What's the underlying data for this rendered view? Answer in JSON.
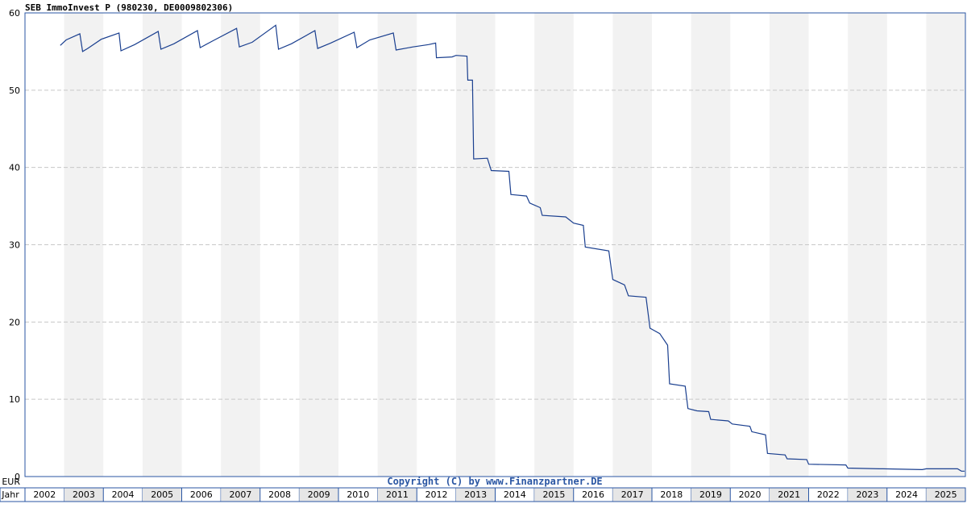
{
  "chart_data": {
    "type": "line",
    "title": "SEB ImmoInvest P (980230, DE0009802306)",
    "ylabel": "EUR",
    "xlabel": "Jahr",
    "ylim": [
      0,
      60
    ],
    "yticks": [
      0,
      10,
      20,
      30,
      40,
      50,
      60
    ],
    "xlim": [
      2001.5,
      2025.5
    ],
    "x_tick_labels": [
      "2002",
      "2003",
      "2004",
      "2005",
      "2006",
      "2007",
      "2008",
      "2009",
      "2010",
      "2011",
      "2012",
      "2013",
      "2014",
      "2015",
      "2016",
      "2017",
      "2018",
      "2019",
      "2020",
      "2021",
      "2022",
      "2023",
      "2024",
      "2025"
    ],
    "grid": true,
    "alternating_year_bands": true,
    "copyright": "Copyright (C) by www.Finanzpartner.DE",
    "series": [
      {
        "color": "#1a3f8f",
        "points": [
          [
            2002.4,
            55.8
          ],
          [
            2002.55,
            56.5
          ],
          [
            2002.9,
            57.3
          ],
          [
            2002.97,
            55.0
          ],
          [
            2003.1,
            55.4
          ],
          [
            2003.45,
            56.6
          ],
          [
            2003.9,
            57.4
          ],
          [
            2003.95,
            55.1
          ],
          [
            2004.3,
            55.9
          ],
          [
            2004.9,
            57.6
          ],
          [
            2004.97,
            55.3
          ],
          [
            2005.3,
            56.0
          ],
          [
            2005.9,
            57.7
          ],
          [
            2005.97,
            55.5
          ],
          [
            2006.3,
            56.4
          ],
          [
            2006.9,
            58.0
          ],
          [
            2006.97,
            55.6
          ],
          [
            2007.3,
            56.2
          ],
          [
            2007.9,
            58.4
          ],
          [
            2007.97,
            55.3
          ],
          [
            2008.3,
            56.0
          ],
          [
            2008.9,
            57.7
          ],
          [
            2008.97,
            55.4
          ],
          [
            2009.3,
            56.1
          ],
          [
            2009.9,
            57.5
          ],
          [
            2009.97,
            55.5
          ],
          [
            2010.3,
            56.5
          ],
          [
            2010.9,
            57.4
          ],
          [
            2010.97,
            55.2
          ],
          [
            2011.4,
            55.6
          ],
          [
            2011.8,
            55.9
          ],
          [
            2011.98,
            56.1
          ],
          [
            2012.0,
            54.2
          ],
          [
            2012.4,
            54.3
          ],
          [
            2012.5,
            54.5
          ],
          [
            2012.78,
            54.4
          ],
          [
            2012.8,
            51.3
          ],
          [
            2012.92,
            51.3
          ],
          [
            2012.95,
            41.1
          ],
          [
            2013.3,
            41.2
          ],
          [
            2013.4,
            39.6
          ],
          [
            2013.85,
            39.5
          ],
          [
            2013.9,
            36.5
          ],
          [
            2014.3,
            36.3
          ],
          [
            2014.38,
            35.4
          ],
          [
            2014.65,
            34.8
          ],
          [
            2014.7,
            33.8
          ],
          [
            2015.3,
            33.6
          ],
          [
            2015.5,
            32.8
          ],
          [
            2015.75,
            32.5
          ],
          [
            2015.8,
            29.7
          ],
          [
            2016.4,
            29.2
          ],
          [
            2016.5,
            25.5
          ],
          [
            2016.8,
            24.8
          ],
          [
            2016.9,
            23.4
          ],
          [
            2017.35,
            23.2
          ],
          [
            2017.45,
            19.2
          ],
          [
            2017.7,
            18.5
          ],
          [
            2017.9,
            17.0
          ],
          [
            2017.95,
            12.0
          ],
          [
            2018.35,
            11.7
          ],
          [
            2018.42,
            8.8
          ],
          [
            2018.65,
            8.5
          ],
          [
            2018.95,
            8.4
          ],
          [
            2019.0,
            7.4
          ],
          [
            2019.45,
            7.2
          ],
          [
            2019.55,
            6.8
          ],
          [
            2020.0,
            6.5
          ],
          [
            2020.05,
            5.8
          ],
          [
            2020.4,
            5.4
          ],
          [
            2020.45,
            3.0
          ],
          [
            2020.9,
            2.8
          ],
          [
            2020.95,
            2.3
          ],
          [
            2021.45,
            2.2
          ],
          [
            2021.5,
            1.6
          ],
          [
            2022.45,
            1.5
          ],
          [
            2022.5,
            1.1
          ],
          [
            2023.3,
            1.0
          ],
          [
            2023.4,
            1.0
          ],
          [
            2024.4,
            0.9
          ],
          [
            2024.5,
            1.0
          ],
          [
            2025.3,
            1.0
          ],
          [
            2025.4,
            0.7
          ],
          [
            2026.5,
            0.7
          ]
        ]
      }
    ]
  }
}
